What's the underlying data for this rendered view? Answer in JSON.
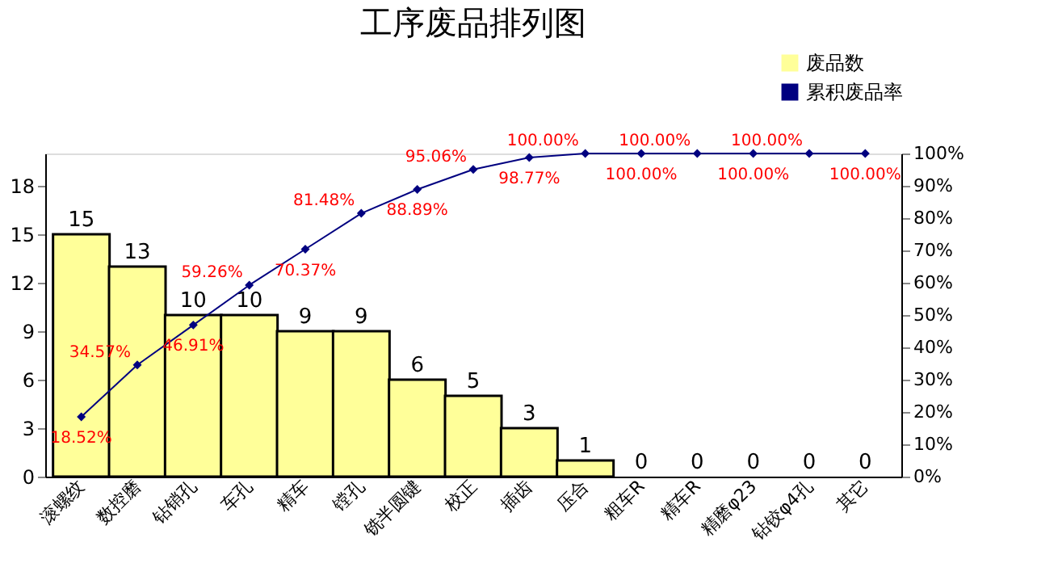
{
  "chart_data": {
    "type": "bar",
    "title": "工序废品排列图",
    "categories": [
      "滚螺纹",
      "数控磨",
      "钻销孔",
      "车孔",
      "精车",
      "镗孔",
      "铣半圆键",
      "校正",
      "插齿",
      "压合",
      "粗车R",
      "精车R",
      "精磨φ23",
      "钻铰φ4孔",
      "其它"
    ],
    "series": [
      {
        "name": "废品数",
        "color": "#ffff99",
        "values": [
          15,
          13,
          10,
          10,
          9,
          9,
          6,
          5,
          3,
          1,
          0,
          0,
          0,
          0,
          0
        ],
        "value_labels": [
          "15",
          "13",
          "10",
          "10",
          "9",
          "9",
          "6",
          "5",
          "3",
          "1",
          "0",
          "0",
          "0",
          "0",
          "0"
        ]
      },
      {
        "name": "累积废品率",
        "type": "line",
        "axis": "y2",
        "color": "#000080",
        "values": [
          18.52,
          34.57,
          46.91,
          59.26,
          70.37,
          81.48,
          88.89,
          95.06,
          98.77,
          100,
          100,
          100,
          100,
          100,
          100
        ],
        "value_labels": [
          "18.52%",
          "34.57%",
          "46.91%",
          "59.26%",
          "70.37%",
          "81.48%",
          "88.89%",
          "95.06%",
          "98.77%",
          "100.00%",
          "100.00%",
          "100.00%",
          "100.00%",
          "100.00%",
          "100.00%"
        ]
      }
    ],
    "ylim": [
      0,
      20
    ],
    "yticks": [
      0,
      3,
      6,
      9,
      12,
      15,
      18
    ],
    "y2lim": [
      0,
      100
    ],
    "y2ticks": [
      {
        "value": 0,
        "label": "0%"
      },
      {
        "value": 10,
        "label": "10%"
      },
      {
        "value": 20,
        "label": "20%"
      },
      {
        "value": 30,
        "label": "30%"
      },
      {
        "value": 40,
        "label": "40%"
      },
      {
        "value": 50,
        "label": "50%"
      },
      {
        "value": 60,
        "label": "60%"
      },
      {
        "value": 70,
        "label": "70%"
      },
      {
        "value": 80,
        "label": "80%"
      },
      {
        "value": 90,
        "label": "90%"
      },
      {
        "value": 100,
        "label": "100%"
      }
    ],
    "marker": "diamond",
    "legend": "top right",
    "grid": false
  }
}
